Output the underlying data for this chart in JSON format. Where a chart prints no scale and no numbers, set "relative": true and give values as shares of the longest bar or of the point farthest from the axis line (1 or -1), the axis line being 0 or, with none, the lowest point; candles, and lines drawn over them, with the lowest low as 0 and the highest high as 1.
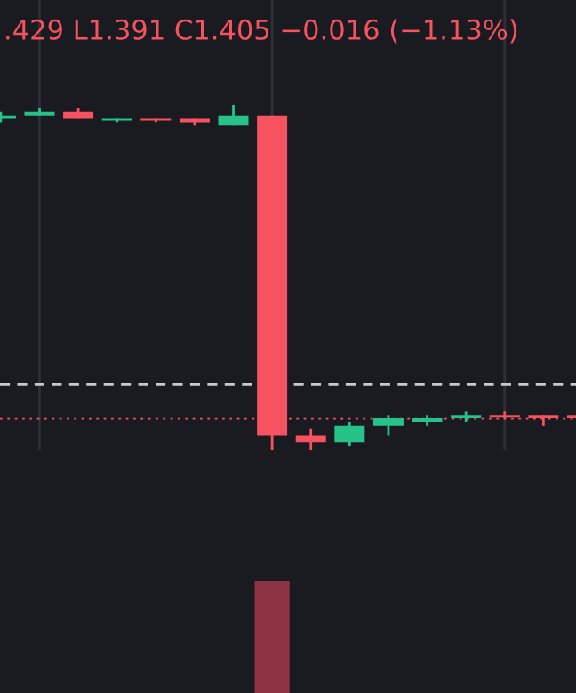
{
  "chart_data": [
    {
      "type": "candlestick",
      "title": ".429 L1.391 C1.405 −0.016 (−1.13%)",
      "relative": true,
      "grid": "x",
      "categories": [
        null,
        null,
        null,
        null,
        null,
        null,
        null,
        null,
        null,
        null,
        null,
        null,
        null,
        null,
        null,
        null
      ],
      "ohlc": [
        [
          0.96,
          0.98,
          0.95,
          0.97
        ],
        [
          0.97,
          0.99,
          0.97,
          0.98
        ],
        [
          0.98,
          0.99,
          0.96,
          0.96
        ],
        [
          0.955,
          0.96,
          0.95,
          0.96
        ],
        [
          0.96,
          0.96,
          0.95,
          0.955
        ],
        [
          0.96,
          0.96,
          0.94,
          0.95
        ],
        [
          0.94,
          1.0,
          0.94,
          0.97
        ],
        [
          0.97,
          0.97,
          0.0,
          0.04
        ],
        [
          0.04,
          0.06,
          0.0,
          0.02
        ],
        [
          0.02,
          0.08,
          0.01,
          0.07
        ],
        [
          0.07,
          0.1,
          0.04,
          0.09
        ],
        [
          0.08,
          0.1,
          0.07,
          0.09
        ],
        [
          0.09,
          0.11,
          0.08,
          0.1
        ],
        [
          0.1,
          0.11,
          0.09,
          0.095
        ],
        [
          0.1,
          0.1,
          0.07,
          0.09
        ],
        [
          0.1,
          0.1,
          0.09,
          0.09
        ]
      ],
      "colors": [
        "#26c28a",
        "#26c28a",
        "#f7525f",
        "#26c28a",
        "#f7525f",
        "#f7525f",
        "#26c28a",
        "#f7525f",
        "#f7525f",
        "#26c28a",
        "#26c28a",
        "#26c28a",
        "#26c28a",
        "#f7525f",
        "#f7525f",
        "#f7525f"
      ],
      "ref_lines": [
        {
          "axis": "y",
          "value": 0.19,
          "label": null,
          "color": "#c8cad0",
          "line_style": "dashed"
        },
        {
          "axis": "y",
          "value": 0.09,
          "label": null,
          "color": "#f7525f",
          "line_style": "dotted"
        }
      ]
    },
    {
      "type": "bar",
      "relative": true,
      "categories": [
        null,
        null,
        null,
        null,
        null,
        null,
        null,
        null,
        null,
        null,
        null,
        null,
        null,
        null,
        null,
        null
      ],
      "values": [
        null,
        null,
        null,
        null,
        null,
        null,
        null,
        1,
        null,
        null,
        null,
        null,
        null,
        null,
        null,
        null
      ],
      "color": "#8d3343"
    }
  ]
}
